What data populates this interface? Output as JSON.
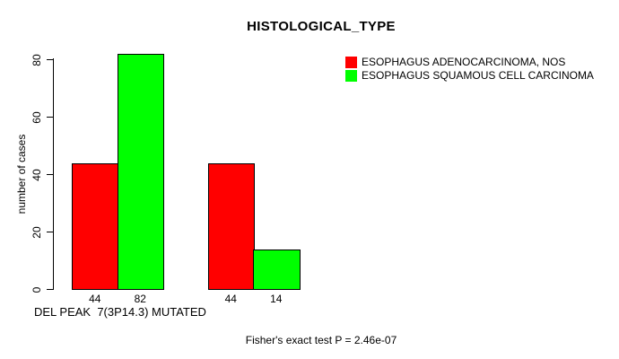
{
  "chart_data": {
    "type": "bar",
    "title": "HISTOLOGICAL_TYPE",
    "ylabel": "number of cases",
    "xlabel": "DEL PEAK  7(3P14.3) MUTATED",
    "ylim": [
      0,
      80
    ],
    "yticks": [
      0,
      20,
      40,
      60,
      80
    ],
    "grid": false,
    "legend_position": "top-right-inside",
    "bar_value_labels_shown": true,
    "series": [
      {
        "name": "ESOPHAGUS ADENOCARCINOMA, NOS",
        "color": "#FF0000",
        "values": [
          44,
          44
        ]
      },
      {
        "name": "ESOPHAGUS SQUAMOUS CELL CARCINOMA",
        "color": "#00FF00",
        "values": [
          82,
          14
        ]
      }
    ],
    "groups": [
      {
        "bars": [
          {
            "series": "ESOPHAGUS ADENOCARCINOMA, NOS",
            "value": 44
          },
          {
            "series": "ESOPHAGUS SQUAMOUS CELL CARCINOMA",
            "value": 82
          }
        ]
      },
      {
        "bars": [
          {
            "series": "ESOPHAGUS ADENOCARCINOMA, NOS",
            "value": 44
          },
          {
            "series": "ESOPHAGUS SQUAMOUS CELL CARCINOMA",
            "value": 14
          }
        ]
      }
    ],
    "annotation": "Fisher's exact test P = 2.46e-07"
  }
}
